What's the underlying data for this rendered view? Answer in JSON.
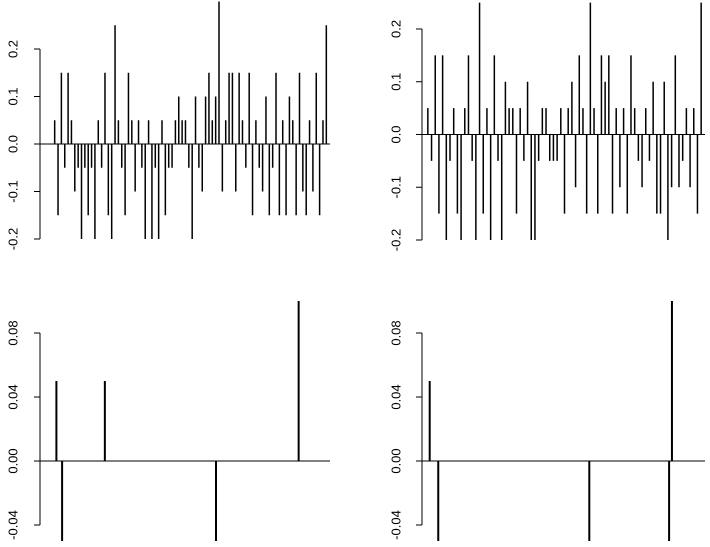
{
  "chart_data": [
    {
      "type": "bar",
      "color": "#000000",
      "values": [
        0.05,
        -0.15,
        0.15,
        -0.05,
        0.15,
        0.05,
        -0.1,
        -0.05,
        -0.2,
        -0.05,
        -0.15,
        -0.05,
        -0.2,
        0.05,
        -0.05,
        0.15,
        -0.15,
        -0.2,
        0.25,
        0.05,
        -0.05,
        -0.15,
        0.15,
        0.05,
        -0.1,
        0.05,
        -0.05,
        -0.2,
        0.05,
        -0.2,
        -0.05,
        -0.2,
        0.05,
        -0.15,
        -0.05,
        -0.05,
        0.05,
        0.1,
        0.05,
        0.05,
        -0.05,
        -0.2,
        0.1,
        -0.05,
        -0.1,
        0.1,
        0.15,
        0.05,
        0.1,
        0.3,
        -0.1,
        0.05,
        0.15,
        0.15,
        -0.1,
        0.15,
        0.05,
        -0.05,
        0.15,
        -0.15,
        0.05,
        -0.05,
        -0.1,
        0.1,
        -0.15,
        -0.05,
        0.15,
        -0.15,
        0.05,
        -0.15,
        0.1,
        0.05,
        -0.15,
        0.15,
        -0.1,
        -0.15,
        0.05,
        -0.1,
        0.15,
        -0.15,
        0.05,
        0.25
      ],
      "ylim": [
        -0.2,
        0.3
      ],
      "yticks": [
        -0.2,
        -0.1,
        {
          "value": 0,
          "label": "0.0"
        },
        0.1,
        0.2
      ]
    },
    {
      "type": "bar",
      "color": "#000000",
      "values": [
        0.05,
        -0.05,
        0.15,
        -0.15,
        0.15,
        -0.2,
        -0.05,
        0.05,
        -0.15,
        -0.2,
        0.05,
        0.15,
        -0.05,
        -0.2,
        0.25,
        -0.15,
        0.05,
        -0.2,
        0.15,
        -0.05,
        -0.2,
        0.1,
        0.05,
        0.05,
        -0.15,
        0.05,
        -0.05,
        0.1,
        -0.2,
        -0.2,
        -0.05,
        0.05,
        0.05,
        -0.05,
        -0.05,
        -0.05,
        0.05,
        -0.15,
        0.05,
        0.1,
        -0.1,
        0.15,
        0.05,
        -0.15,
        0.25,
        0.05,
        -0.15,
        0.15,
        0.1,
        0.15,
        -0.15,
        0.05,
        -0.1,
        0.05,
        -0.15,
        0.15,
        0.05,
        -0.05,
        -0.1,
        0.05,
        -0.05,
        0.1,
        -0.15,
        -0.15,
        0.1,
        -0.2,
        -0.1,
        0.15,
        -0.1,
        -0.05,
        0.05,
        -0.1,
        0.05,
        -0.15,
        0.25
      ],
      "ylim": [
        -0.2,
        0.25
      ],
      "yticks": [
        -0.2,
        -0.1,
        {
          "value": 0,
          "label": "0.0"
        },
        0.1,
        0.2
      ]
    },
    {
      "type": "bar",
      "color": "#000000",
      "x": [
        4,
        6,
        21,
        60,
        89
      ],
      "xlim": [
        0,
        100
      ],
      "values": [
        0.05,
        -0.05,
        0.05,
        -0.05,
        0.1
      ],
      "ylim": [
        -0.05,
        0.1
      ],
      "yticks": [
        -0.04,
        {
          "value": 0,
          "label": "0.00"
        },
        0.04,
        0.08
      ]
    },
    {
      "type": "bar",
      "color": "#000000",
      "x": [
        2,
        5,
        58,
        86,
        87
      ],
      "xlim": [
        0,
        100
      ],
      "values": [
        0.05,
        -0.05,
        -0.05,
        -0.05,
        0.1
      ],
      "ylim": [
        -0.05,
        0.1
      ],
      "yticks": [
        -0.04,
        {
          "value": 0,
          "label": "0.00"
        },
        0.04,
        0.08
      ]
    }
  ]
}
